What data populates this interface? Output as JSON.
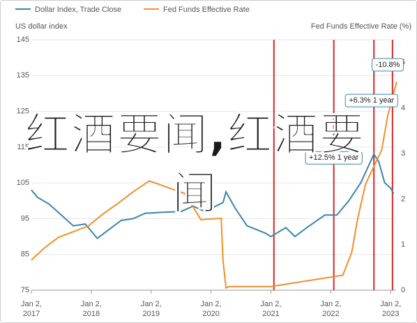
{
  "chart_data": {
    "type": "line",
    "legend": [
      "Dollar Index, Trade Close",
      "Fed Funds Effective Rate"
    ],
    "ylabel": "US dollar index",
    "y2label": "Fed Funds Effective Rate (%)",
    "overlay_text": "红酒要闻,红酒要闻",
    "xlim": [
      2017,
      2023.09
    ],
    "xticks": [
      {
        "value": 2017,
        "label": "Jan 2, 2017"
      },
      {
        "value": 2018,
        "label": "Jan 2, 2018"
      },
      {
        "value": 2019,
        "label": "Jan 2, 2019"
      },
      {
        "value": 2020,
        "label": "Jan 2, 2020"
      },
      {
        "value": 2021,
        "label": "Jan 2, 2021"
      },
      {
        "value": 2022,
        "label": "Jan 2, 2022"
      },
      {
        "value": 2023,
        "label": "Jan 2, 2023"
      }
    ],
    "ylim": [
      75,
      145
    ],
    "yticks": [
      75,
      85,
      95,
      105,
      115,
      125,
      135,
      145
    ],
    "y2lim": [
      0,
      5.5
    ],
    "y2ticks": [
      0,
      1,
      2,
      3,
      4,
      5
    ],
    "grid": true,
    "series": [
      {
        "name": "Dollar Index, Trade Close",
        "color": "#3a86a8",
        "x": [
          2017.0,
          2017.1,
          2017.3,
          2017.5,
          2017.7,
          2017.9,
          2018.1,
          2018.3,
          2018.5,
          2018.7,
          2018.9,
          2019.2,
          2019.5,
          2019.7,
          2019.9,
          2020.2,
          2020.25,
          2020.4,
          2020.6,
          2020.9,
          2021.0,
          2021.25,
          2021.4,
          2021.6,
          2021.9,
          2022.1,
          2022.3,
          2022.5,
          2022.72,
          2022.8,
          2022.9,
          2023.0,
          2023.05
        ],
        "values": [
          103,
          101,
          99,
          96,
          93,
          93.5,
          89.5,
          92,
          94.5,
          95,
          96.5,
          96.8,
          97,
          98.5,
          97,
          99.5,
          102.5,
          98,
          93,
          91,
          90,
          92.5,
          90,
          92.5,
          96,
          96,
          100,
          105,
          113,
          111,
          105,
          103.5,
          102
        ]
      },
      {
        "name": "Fed Funds Effective Rate",
        "color": "#f28e2b",
        "axis": "y2",
        "x": [
          2017.0,
          2017.2,
          2017.45,
          2017.95,
          2018.2,
          2018.45,
          2018.72,
          2018.97,
          2019.55,
          2019.7,
          2019.83,
          2020.17,
          2020.2,
          2020.25,
          2020.3,
          2021.0,
          2022.2,
          2022.35,
          2022.45,
          2022.58,
          2022.85,
          2022.95,
          2023.05,
          2023.1
        ],
        "values": [
          0.66,
          0.91,
          1.16,
          1.41,
          1.68,
          1.91,
          2.18,
          2.4,
          2.13,
          1.83,
          1.55,
          1.58,
          0.65,
          0.05,
          0.08,
          0.08,
          0.33,
          0.83,
          1.58,
          2.33,
          3.08,
          3.83,
          4.33,
          4.58
        ]
      }
    ],
    "vlines": {
      "color": "#d62728",
      "x": [
        2021.05,
        2022.05,
        2022.72,
        2023.03
      ]
    },
    "annotations": [
      {
        "text": "-10.8%",
        "x": 2022.95,
        "y": 138
      },
      {
        "text": "+6.3% 1 year",
        "x": 2022.68,
        "y": 128
      },
      {
        "text": "+12.5% 1 year",
        "x": 2022.05,
        "y": 112
      }
    ]
  }
}
